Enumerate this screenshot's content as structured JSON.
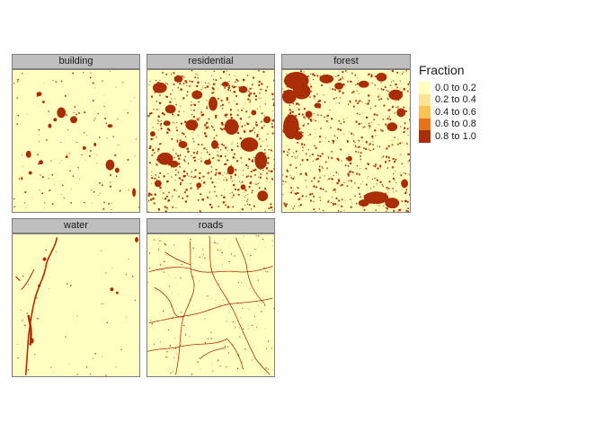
{
  "facets": [
    {
      "key": "building",
      "label": "building"
    },
    {
      "key": "residential",
      "label": "residential"
    },
    {
      "key": "forest",
      "label": "forest"
    },
    {
      "key": "water",
      "label": "water"
    },
    {
      "key": "roads",
      "label": "roads"
    }
  ],
  "legend": {
    "title": "Fraction",
    "items": [
      {
        "label": "0.0 to 0.2",
        "color": "#ffffbf"
      },
      {
        "label": "0.2 to 0.4",
        "color": "#fee391"
      },
      {
        "label": "0.4 to 0.6",
        "color": "#fec44f"
      },
      {
        "label": "0.6 to 0.8",
        "color": "#ec7014"
      },
      {
        "label": "0.8 to 1.0",
        "color": "#a92e05"
      }
    ]
  }
}
